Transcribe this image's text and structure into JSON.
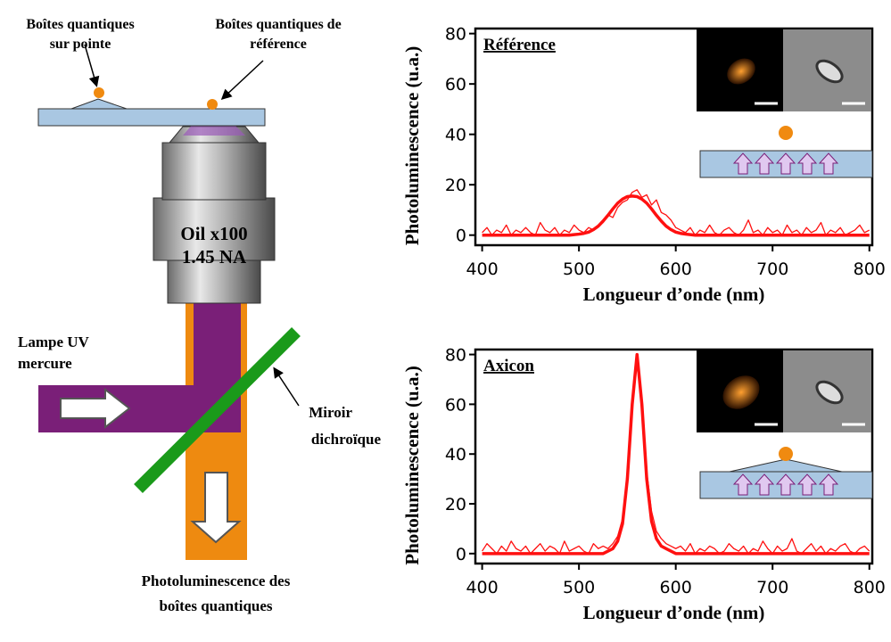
{
  "chart_data": [
    {
      "type": "line",
      "annotation": "Référence",
      "xlabel": "Longueur d’onde (nm)",
      "ylabel": "Photoluminescence (u.a.)",
      "x": [
        400,
        405,
        410,
        415,
        420,
        425,
        430,
        435,
        440,
        445,
        450,
        455,
        460,
        465,
        470,
        475,
        480,
        485,
        490,
        495,
        500,
        505,
        510,
        515,
        520,
        525,
        530,
        535,
        540,
        545,
        550,
        555,
        560,
        565,
        570,
        575,
        580,
        585,
        590,
        595,
        600,
        605,
        610,
        615,
        620,
        625,
        630,
        635,
        640,
        645,
        650,
        655,
        660,
        665,
        670,
        675,
        680,
        685,
        690,
        695,
        700,
        705,
        710,
        715,
        720,
        725,
        730,
        735,
        740,
        745,
        750,
        755,
        760,
        765,
        770,
        775,
        780,
        785,
        790,
        795,
        800
      ],
      "series": [
        {
          "color": "#ff1010",
          "values": [
            1,
            3,
            0,
            2,
            1,
            4,
            0,
            2,
            1,
            3,
            1,
            0,
            5,
            2,
            1,
            3,
            0,
            2,
            1,
            4,
            2,
            1,
            3,
            2,
            4,
            5,
            8,
            7,
            11,
            13,
            14,
            17,
            18,
            15,
            16,
            12,
            14,
            9,
            8,
            6,
            3,
            2,
            1,
            3,
            0,
            2,
            1,
            4,
            1,
            0,
            2,
            3,
            1,
            0,
            2,
            6,
            1,
            2,
            0,
            3,
            1,
            2,
            0,
            4,
            1,
            2,
            0,
            3,
            1,
            2,
            5,
            0,
            2,
            1,
            3,
            0,
            1,
            2,
            4,
            1,
            2
          ]
        },
        {
          "color": "#ff1010",
          "values": [
            0,
            0,
            0,
            0,
            0,
            0,
            0,
            0,
            0,
            0,
            0,
            0,
            0,
            0,
            0,
            0,
            0,
            0,
            0,
            0.2,
            0.4,
            0.7,
            1.2,
            2.2,
            3.6,
            5.6,
            7.9,
            10.4,
            12.7,
            14.3,
            15.3,
            15.5,
            15.3,
            14.3,
            12.7,
            10.4,
            7.9,
            5.6,
            3.6,
            2.2,
            1.2,
            0.7,
            0.4,
            0.2,
            0,
            0,
            0,
            0,
            0,
            0,
            0,
            0,
            0,
            0,
            0,
            0,
            0,
            0,
            0,
            0,
            0,
            0,
            0,
            0,
            0,
            0,
            0,
            0,
            0,
            0,
            0,
            0,
            0,
            0,
            0,
            0,
            0,
            0,
            0,
            0,
            0
          ]
        }
      ],
      "xlim": [
        393,
        803
      ],
      "xticks": [
        400,
        500,
        600,
        700,
        800
      ],
      "ylim": [
        -4,
        82
      ],
      "yticks": [
        0,
        20,
        40,
        60,
        80
      ]
    },
    {
      "type": "line",
      "annotation": "Axicon",
      "xlabel": "Longueur d’onde (nm)",
      "ylabel": "Photoluminescence (u.a.)",
      "x": [
        400,
        405,
        410,
        415,
        420,
        425,
        430,
        435,
        440,
        445,
        450,
        455,
        460,
        465,
        470,
        475,
        480,
        485,
        490,
        495,
        500,
        505,
        510,
        515,
        520,
        525,
        530,
        535,
        540,
        545,
        550,
        555,
        560,
        565,
        570,
        575,
        580,
        585,
        590,
        595,
        600,
        605,
        610,
        615,
        620,
        625,
        630,
        635,
        640,
        645,
        650,
        655,
        660,
        665,
        670,
        675,
        680,
        685,
        690,
        695,
        700,
        705,
        710,
        715,
        720,
        725,
        730,
        735,
        740,
        745,
        750,
        755,
        760,
        765,
        770,
        775,
        780,
        785,
        790,
        795,
        800
      ],
      "series": [
        {
          "color": "#ff1010",
          "values": [
            1,
            4,
            2,
            0,
            3,
            1,
            5,
            2,
            1,
            3,
            0,
            2,
            4,
            1,
            3,
            2,
            0,
            5,
            1,
            2,
            3,
            1,
            0,
            4,
            2,
            3,
            2,
            4,
            7,
            14,
            32,
            62,
            79,
            63,
            33,
            17,
            9,
            6,
            4,
            3,
            2,
            3,
            1,
            4,
            0,
            2,
            1,
            3,
            2,
            0,
            1,
            4,
            2,
            1,
            3,
            0,
            2,
            1,
            5,
            2,
            0,
            3,
            1,
            2,
            6,
            1,
            0,
            2,
            4,
            1,
            3,
            0,
            2,
            1,
            3,
            4,
            1,
            0,
            2,
            3,
            1
          ]
        },
        {
          "color": "#ff1010",
          "values": [
            0,
            0,
            0,
            0,
            0,
            0,
            0,
            0,
            0,
            0,
            0,
            0,
            0,
            0,
            0,
            0,
            0,
            0,
            0,
            0,
            0,
            0,
            0,
            0,
            0,
            0,
            1,
            2,
            5,
            12,
            30,
            60,
            80,
            60,
            30,
            13,
            6,
            3,
            2,
            1,
            0,
            0,
            0,
            0,
            0,
            0,
            0,
            0,
            0,
            0,
            0,
            0,
            0,
            0,
            0,
            0,
            0,
            0,
            0,
            0,
            0,
            0,
            0,
            0,
            0,
            0,
            0,
            0,
            0,
            0,
            0,
            0,
            0,
            0,
            0,
            0,
            0,
            0,
            0,
            0,
            0
          ]
        }
      ],
      "xlim": [
        393,
        803
      ],
      "xticks": [
        400,
        500,
        600,
        700,
        800
      ],
      "ylim": [
        -4,
        82
      ],
      "yticks": [
        0,
        20,
        40,
        60,
        80
      ]
    }
  ],
  "diagram": {
    "tip": [
      "Boîtes quantiques",
      "sur pointe"
    ],
    "reference": [
      "Boîtes quantiques de",
      "référence"
    ],
    "objective": [
      "Oil x100",
      "1.45 NA"
    ],
    "lamp": [
      "Lampe UV",
      "mercure"
    ],
    "mirror": [
      "Miroir",
      "dichroïque"
    ],
    "output": [
      "Photoluminescence des",
      "boîtes quantiques"
    ]
  }
}
